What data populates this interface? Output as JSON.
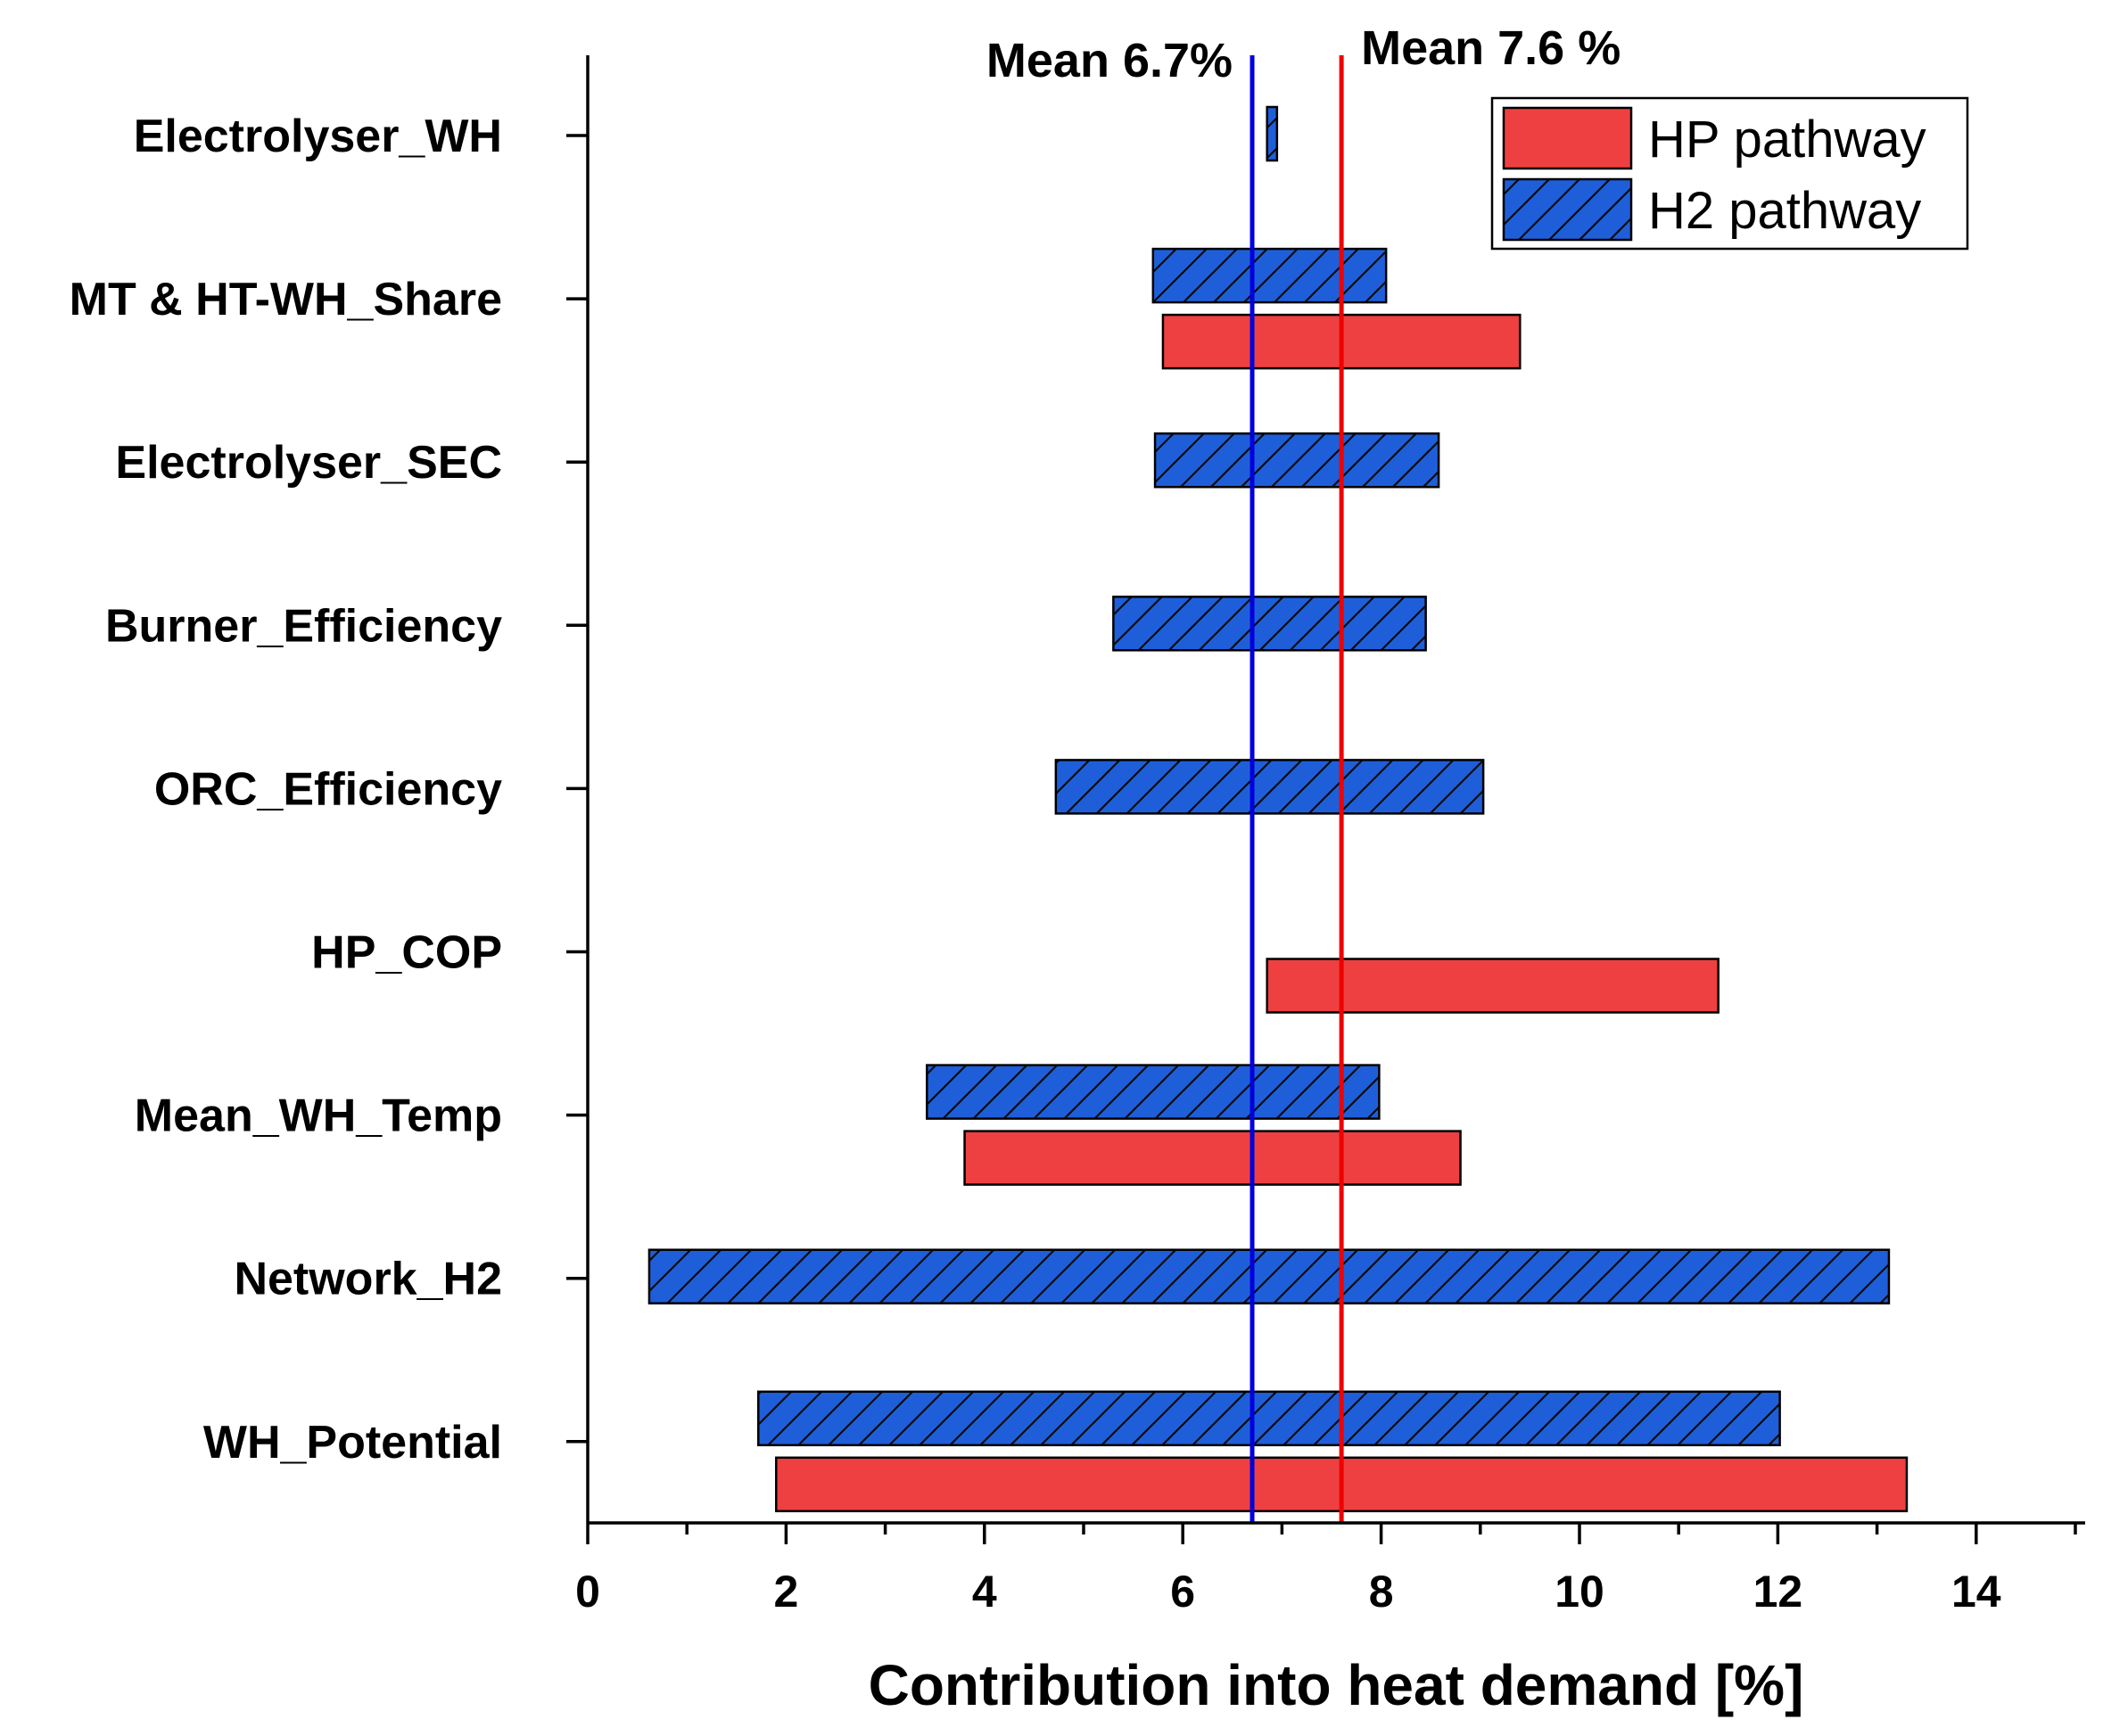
{
  "chart_data": {
    "type": "bar",
    "orientation": "horizontal",
    "chart_style": "tornado / floating range bars",
    "categories": [
      "Electrolyser_WH",
      "MT & HT-WH_Share",
      "Electrolyser_SEC",
      "Burner_Efficiency",
      "ORC_Efficiency",
      "HP_COP",
      "Mean_WH_Temp",
      "Network_H2",
      "WH_Potential"
    ],
    "series": [
      {
        "name": "HP pathway",
        "color": "#ee4040",
        "pattern": "solid",
        "ranges": [
          null,
          [
            5.8,
            9.4
          ],
          null,
          null,
          null,
          [
            6.85,
            11.4
          ],
          [
            3.8,
            8.8
          ],
          null,
          [
            1.9,
            13.3
          ]
        ]
      },
      {
        "name": "H2 pathway",
        "color": "#1e5fd9",
        "pattern": "hatched",
        "ranges": [
          [
            6.85,
            6.95
          ],
          [
            5.7,
            8.05
          ],
          [
            5.72,
            8.58
          ],
          [
            5.3,
            8.45
          ],
          [
            4.72,
            9.03
          ],
          null,
          [
            3.42,
            7.98
          ],
          [
            0.62,
            13.12
          ],
          [
            1.72,
            12.02
          ]
        ]
      }
    ],
    "reference_lines": [
      {
        "label": "Mean 6.7%",
        "value": 6.7,
        "color": "#0000dd",
        "series": "H2 pathway"
      },
      {
        "label": "Mean 7.6 %",
        "value": 7.6,
        "color": "#ee0000",
        "series": "HP pathway"
      }
    ],
    "xlabel": "Contribution into heat demand [%]",
    "ylabel": "",
    "xlim": [
      0,
      15
    ],
    "xticks": [
      0,
      2,
      4,
      6,
      8,
      10,
      12,
      14
    ],
    "xtick_labels": [
      "0",
      "2",
      "4",
      "6",
      "8",
      "10",
      "12",
      "14"
    ],
    "minor_ticks": true,
    "grid": false,
    "legend_position": "top-right"
  }
}
